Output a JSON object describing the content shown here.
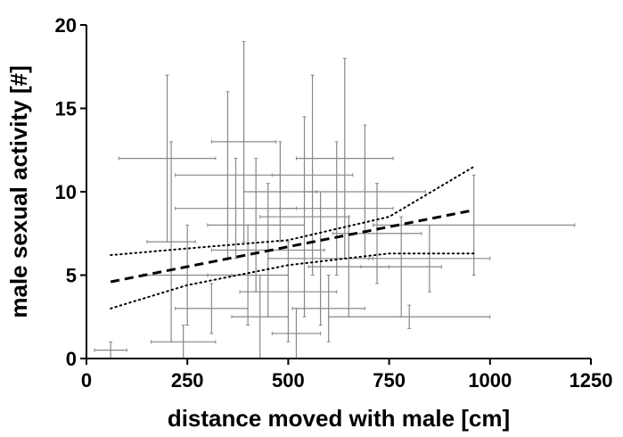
{
  "chart_data": {
    "type": "scatter",
    "title": "",
    "xlabel": "distance moved with male [cm]",
    "ylabel": "male sexual activity [#]",
    "xlim": [
      0,
      1250
    ],
    "ylim": [
      0,
      20
    ],
    "x_ticks": [
      0,
      250,
      500,
      750,
      1000,
      1250
    ],
    "y_ticks": [
      0,
      5,
      10,
      15,
      20
    ],
    "x_tick_labels": [
      "0",
      "250",
      "500",
      "750",
      "1000",
      "1250"
    ],
    "y_tick_labels": [
      "0",
      "5",
      "10",
      "15",
      "20"
    ],
    "grid": false,
    "legend": "none",
    "colors": {
      "points": "#888888",
      "axis": "#000000",
      "lines": "#000000"
    },
    "series": [
      {
        "points": [
          {
            "x": 60,
            "y": 0.5,
            "xerr": 40,
            "yerr": 0.5
          },
          {
            "x": 200,
            "y": 12,
            "xerr": 120,
            "yerr": 5
          },
          {
            "x": 210,
            "y": 7,
            "xerr": 60,
            "yerr": 6
          },
          {
            "x": 240,
            "y": 1,
            "xerr": 80,
            "yerr": 1
          },
          {
            "x": 250,
            "y": 5,
            "xerr": 110,
            "yerr": 3
          },
          {
            "x": 310,
            "y": 3,
            "xerr": 90,
            "yerr": 1.5
          },
          {
            "x": 350,
            "y": 11,
            "xerr": 130,
            "yerr": 5
          },
          {
            "x": 370,
            "y": 9,
            "xerr": 150,
            "yerr": 3
          },
          {
            "x": 390,
            "y": 13,
            "xerr": 80,
            "yerr": 6
          },
          {
            "x": 400,
            "y": 5,
            "xerr": 100,
            "yerr": 3
          },
          {
            "x": 420,
            "y": 8,
            "xerr": 120,
            "yerr": 4
          },
          {
            "x": 430,
            "y": 2.5,
            "xerr": 70,
            "yerr": 2.5
          },
          {
            "x": 450,
            "y": 6.5,
            "xerr": 140,
            "yerr": 4
          },
          {
            "x": 480,
            "y": 10,
            "xerr": 90,
            "yerr": 3
          },
          {
            "x": 500,
            "y": 4,
            "xerr": 120,
            "yerr": 3
          },
          {
            "x": 520,
            "y": 1.5,
            "xerr": 60,
            "yerr": 1.5
          },
          {
            "x": 540,
            "y": 8.5,
            "xerr": 110,
            "yerr": 6
          },
          {
            "x": 560,
            "y": 11,
            "xerr": 100,
            "yerr": 6
          },
          {
            "x": 580,
            "y": 6,
            "xerr": 130,
            "yerr": 4
          },
          {
            "x": 600,
            "y": 3,
            "xerr": 90,
            "yerr": 2
          },
          {
            "x": 620,
            "y": 9,
            "xerr": 140,
            "yerr": 4
          },
          {
            "x": 640,
            "y": 12,
            "xerr": 120,
            "yerr": 6
          },
          {
            "x": 650,
            "y": 5.5,
            "xerr": 100,
            "yerr": 3
          },
          {
            "x": 690,
            "y": 10,
            "xerr": 150,
            "yerr": 4
          },
          {
            "x": 720,
            "y": 7.5,
            "xerr": 110,
            "yerr": 3
          },
          {
            "x": 780,
            "y": 5.5,
            "xerr": 100,
            "yerr": 3
          },
          {
            "x": 800,
            "y": 2.5,
            "xerr": 200,
            "yerr": 0.7
          },
          {
            "x": 850,
            "y": 6,
            "xerr": 150,
            "yerr": 2
          },
          {
            "x": 960,
            "y": 8,
            "xerr": 250,
            "yerr": 3
          }
        ]
      }
    ],
    "fit_line": {
      "x": [
        60,
        960
      ],
      "y": [
        4.6,
        8.9
      ]
    },
    "confidence_band": {
      "upper": {
        "x": [
          60,
          250,
          500,
          750,
          960
        ],
        "y": [
          6.2,
          6.6,
          7.1,
          8.5,
          11.5
        ]
      },
      "lower": {
        "x": [
          60,
          250,
          500,
          750,
          960
        ],
        "y": [
          3.0,
          4.4,
          5.6,
          6.3,
          6.3
        ]
      }
    }
  }
}
